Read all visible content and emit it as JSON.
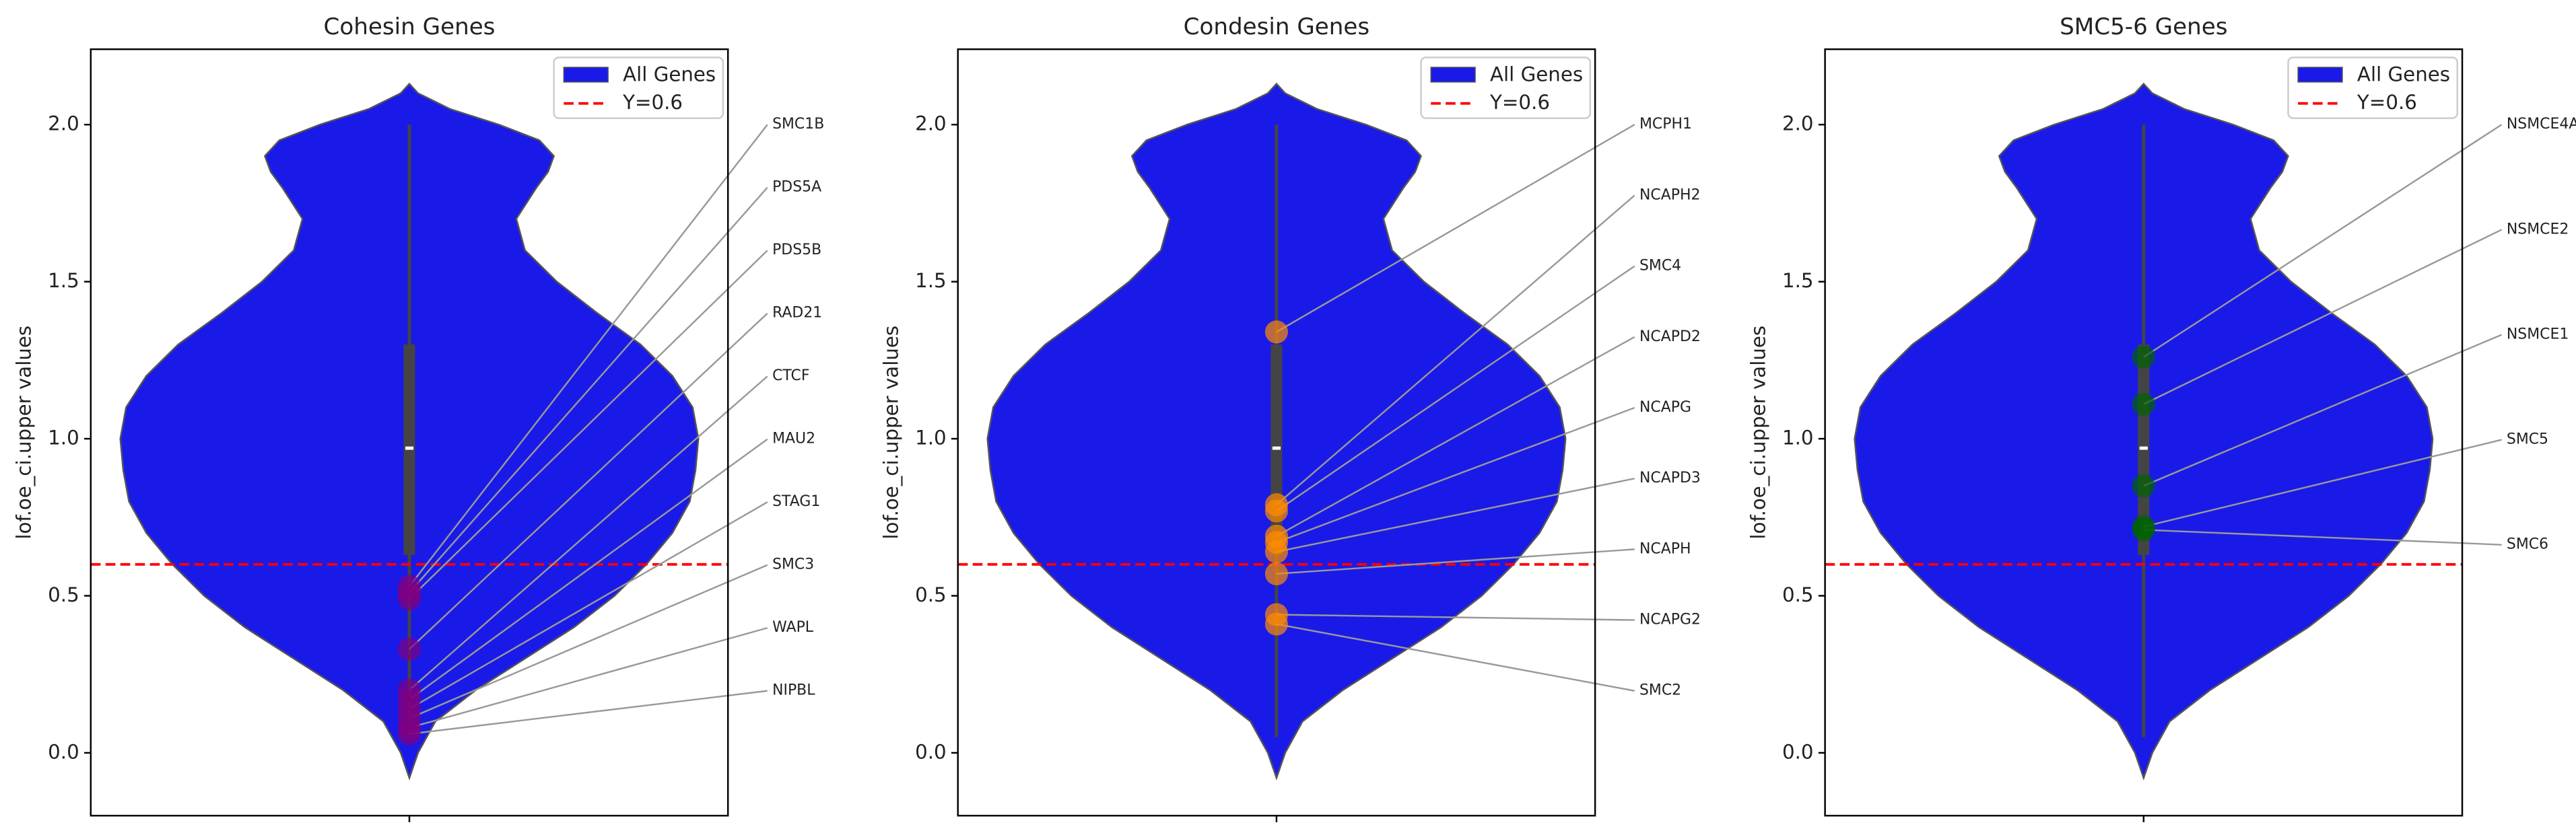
{
  "chart_data": [
    {
      "type": "violin",
      "title": "Cohesin Genes",
      "ylabel": "lof.oe_ci.upper values",
      "ylim": [
        -0.2,
        2.24
      ],
      "yticks": [
        {
          "value": 0,
          "label": "0.0"
        },
        0.5,
        {
          "value": 1,
          "label": "1.0"
        },
        1.5,
        {
          "value": 2,
          "label": "2.0"
        }
      ],
      "violin_name": "All Genes",
      "violin_color": "#1a1ae8",
      "density": {
        "y": [
          -0.08,
          0,
          0.1,
          0.2,
          0.3,
          0.4,
          0.5,
          0.6,
          0.7,
          0.8,
          0.9,
          1.0,
          1.1,
          1.2,
          1.3,
          1.4,
          1.5,
          1.6,
          1.7,
          1.8,
          1.85,
          1.9,
          1.95,
          2.0,
          2.05,
          2.1,
          2.13
        ],
        "width": [
          0,
          0.03,
          0.09,
          0.23,
          0.4,
          0.57,
          0.71,
          0.82,
          0.91,
          0.97,
          0.99,
          1.0,
          0.98,
          0.91,
          0.8,
          0.65,
          0.51,
          0.4,
          0.37,
          0.44,
          0.48,
          0.5,
          0.45,
          0.31,
          0.14,
          0.03,
          0
        ]
      },
      "box": {
        "whisker_low": 0.05,
        "q1": 0.63,
        "median": 0.97,
        "q3": 1.3,
        "whisker_high": 2.0
      },
      "hline": {
        "name": "Y=0.6",
        "value": 0.6,
        "color": "#ff0000"
      },
      "legend": "upper right",
      "points": {
        "names": [
          "SMC1B",
          "PDS5A",
          "PDS5B",
          "RAD21",
          "CTCF",
          "MAU2",
          "STAG1",
          "SMC3",
          "WAPL",
          "NIPBL"
        ],
        "values": [
          0.53,
          0.51,
          0.49,
          0.33,
          0.2,
          0.17,
          0.14,
          0.11,
          0.08,
          0.06
        ],
        "color": "#800080"
      }
    },
    {
      "type": "violin",
      "title": "Condesin Genes",
      "ylabel": "lof.oe_ci.upper values",
      "ylim": [
        -0.2,
        2.24
      ],
      "yticks": [
        {
          "value": 0,
          "label": "0.0"
        },
        0.5,
        {
          "value": 1,
          "label": "1.0"
        },
        1.5,
        {
          "value": 2,
          "label": "2.0"
        }
      ],
      "violin_name": "All Genes",
      "violin_color": "#1a1ae8",
      "density": {
        "y": [
          -0.08,
          0,
          0.1,
          0.2,
          0.3,
          0.4,
          0.5,
          0.6,
          0.7,
          0.8,
          0.9,
          1.0,
          1.1,
          1.2,
          1.3,
          1.4,
          1.5,
          1.6,
          1.7,
          1.8,
          1.85,
          1.9,
          1.95,
          2.0,
          2.05,
          2.1,
          2.13
        ],
        "width": [
          0,
          0.03,
          0.09,
          0.23,
          0.4,
          0.57,
          0.71,
          0.82,
          0.91,
          0.97,
          0.99,
          1.0,
          0.98,
          0.91,
          0.8,
          0.65,
          0.51,
          0.4,
          0.37,
          0.44,
          0.48,
          0.5,
          0.45,
          0.31,
          0.14,
          0.03,
          0
        ]
      },
      "box": {
        "whisker_low": 0.05,
        "q1": 0.63,
        "median": 0.97,
        "q3": 1.3,
        "whisker_high": 2.0
      },
      "hline": {
        "name": "Y=0.6",
        "value": 0.6,
        "color": "#ff0000"
      },
      "legend": "upper right",
      "points": {
        "names": [
          "MCPH1",
          "NCAPH2",
          "SMC4",
          "NCAPD2",
          "NCAPG",
          "NCAPD3",
          "NCAPH",
          "NCAPG2",
          "SMC2"
        ],
        "values": [
          1.34,
          0.79,
          0.77,
          0.69,
          0.67,
          0.64,
          0.57,
          0.44,
          0.41
        ],
        "color": "#ff8c00"
      }
    },
    {
      "type": "violin",
      "title": "SMC5-6 Genes",
      "ylabel": "lof.oe_ci.upper values",
      "ylim": [
        -0.2,
        2.24
      ],
      "yticks": [
        {
          "value": 0,
          "label": "0.0"
        },
        0.5,
        {
          "value": 1,
          "label": "1.0"
        },
        1.5,
        {
          "value": 2,
          "label": "2.0"
        }
      ],
      "violin_name": "All Genes",
      "violin_color": "#1a1ae8",
      "density": {
        "y": [
          -0.08,
          0,
          0.1,
          0.2,
          0.3,
          0.4,
          0.5,
          0.6,
          0.7,
          0.8,
          0.9,
          1.0,
          1.1,
          1.2,
          1.3,
          1.4,
          1.5,
          1.6,
          1.7,
          1.8,
          1.85,
          1.9,
          1.95,
          2.0,
          2.05,
          2.1,
          2.13
        ],
        "width": [
          0,
          0.03,
          0.09,
          0.23,
          0.4,
          0.57,
          0.71,
          0.82,
          0.91,
          0.97,
          0.99,
          1.0,
          0.98,
          0.91,
          0.8,
          0.65,
          0.51,
          0.4,
          0.37,
          0.44,
          0.48,
          0.5,
          0.45,
          0.31,
          0.14,
          0.03,
          0
        ]
      },
      "box": {
        "whisker_low": 0.05,
        "q1": 0.63,
        "median": 0.97,
        "q3": 1.3,
        "whisker_high": 2.0
      },
      "hline": {
        "name": "Y=0.6",
        "value": 0.6,
        "color": "#ff0000"
      },
      "legend": "upper right",
      "points": {
        "names": [
          "NSMCE4A",
          "NSMCE2",
          "NSMCE1",
          "SMC5",
          "SMC6"
        ],
        "values": [
          1.26,
          1.11,
          0.85,
          0.72,
          0.71
        ],
        "color": "#006400"
      }
    }
  ]
}
